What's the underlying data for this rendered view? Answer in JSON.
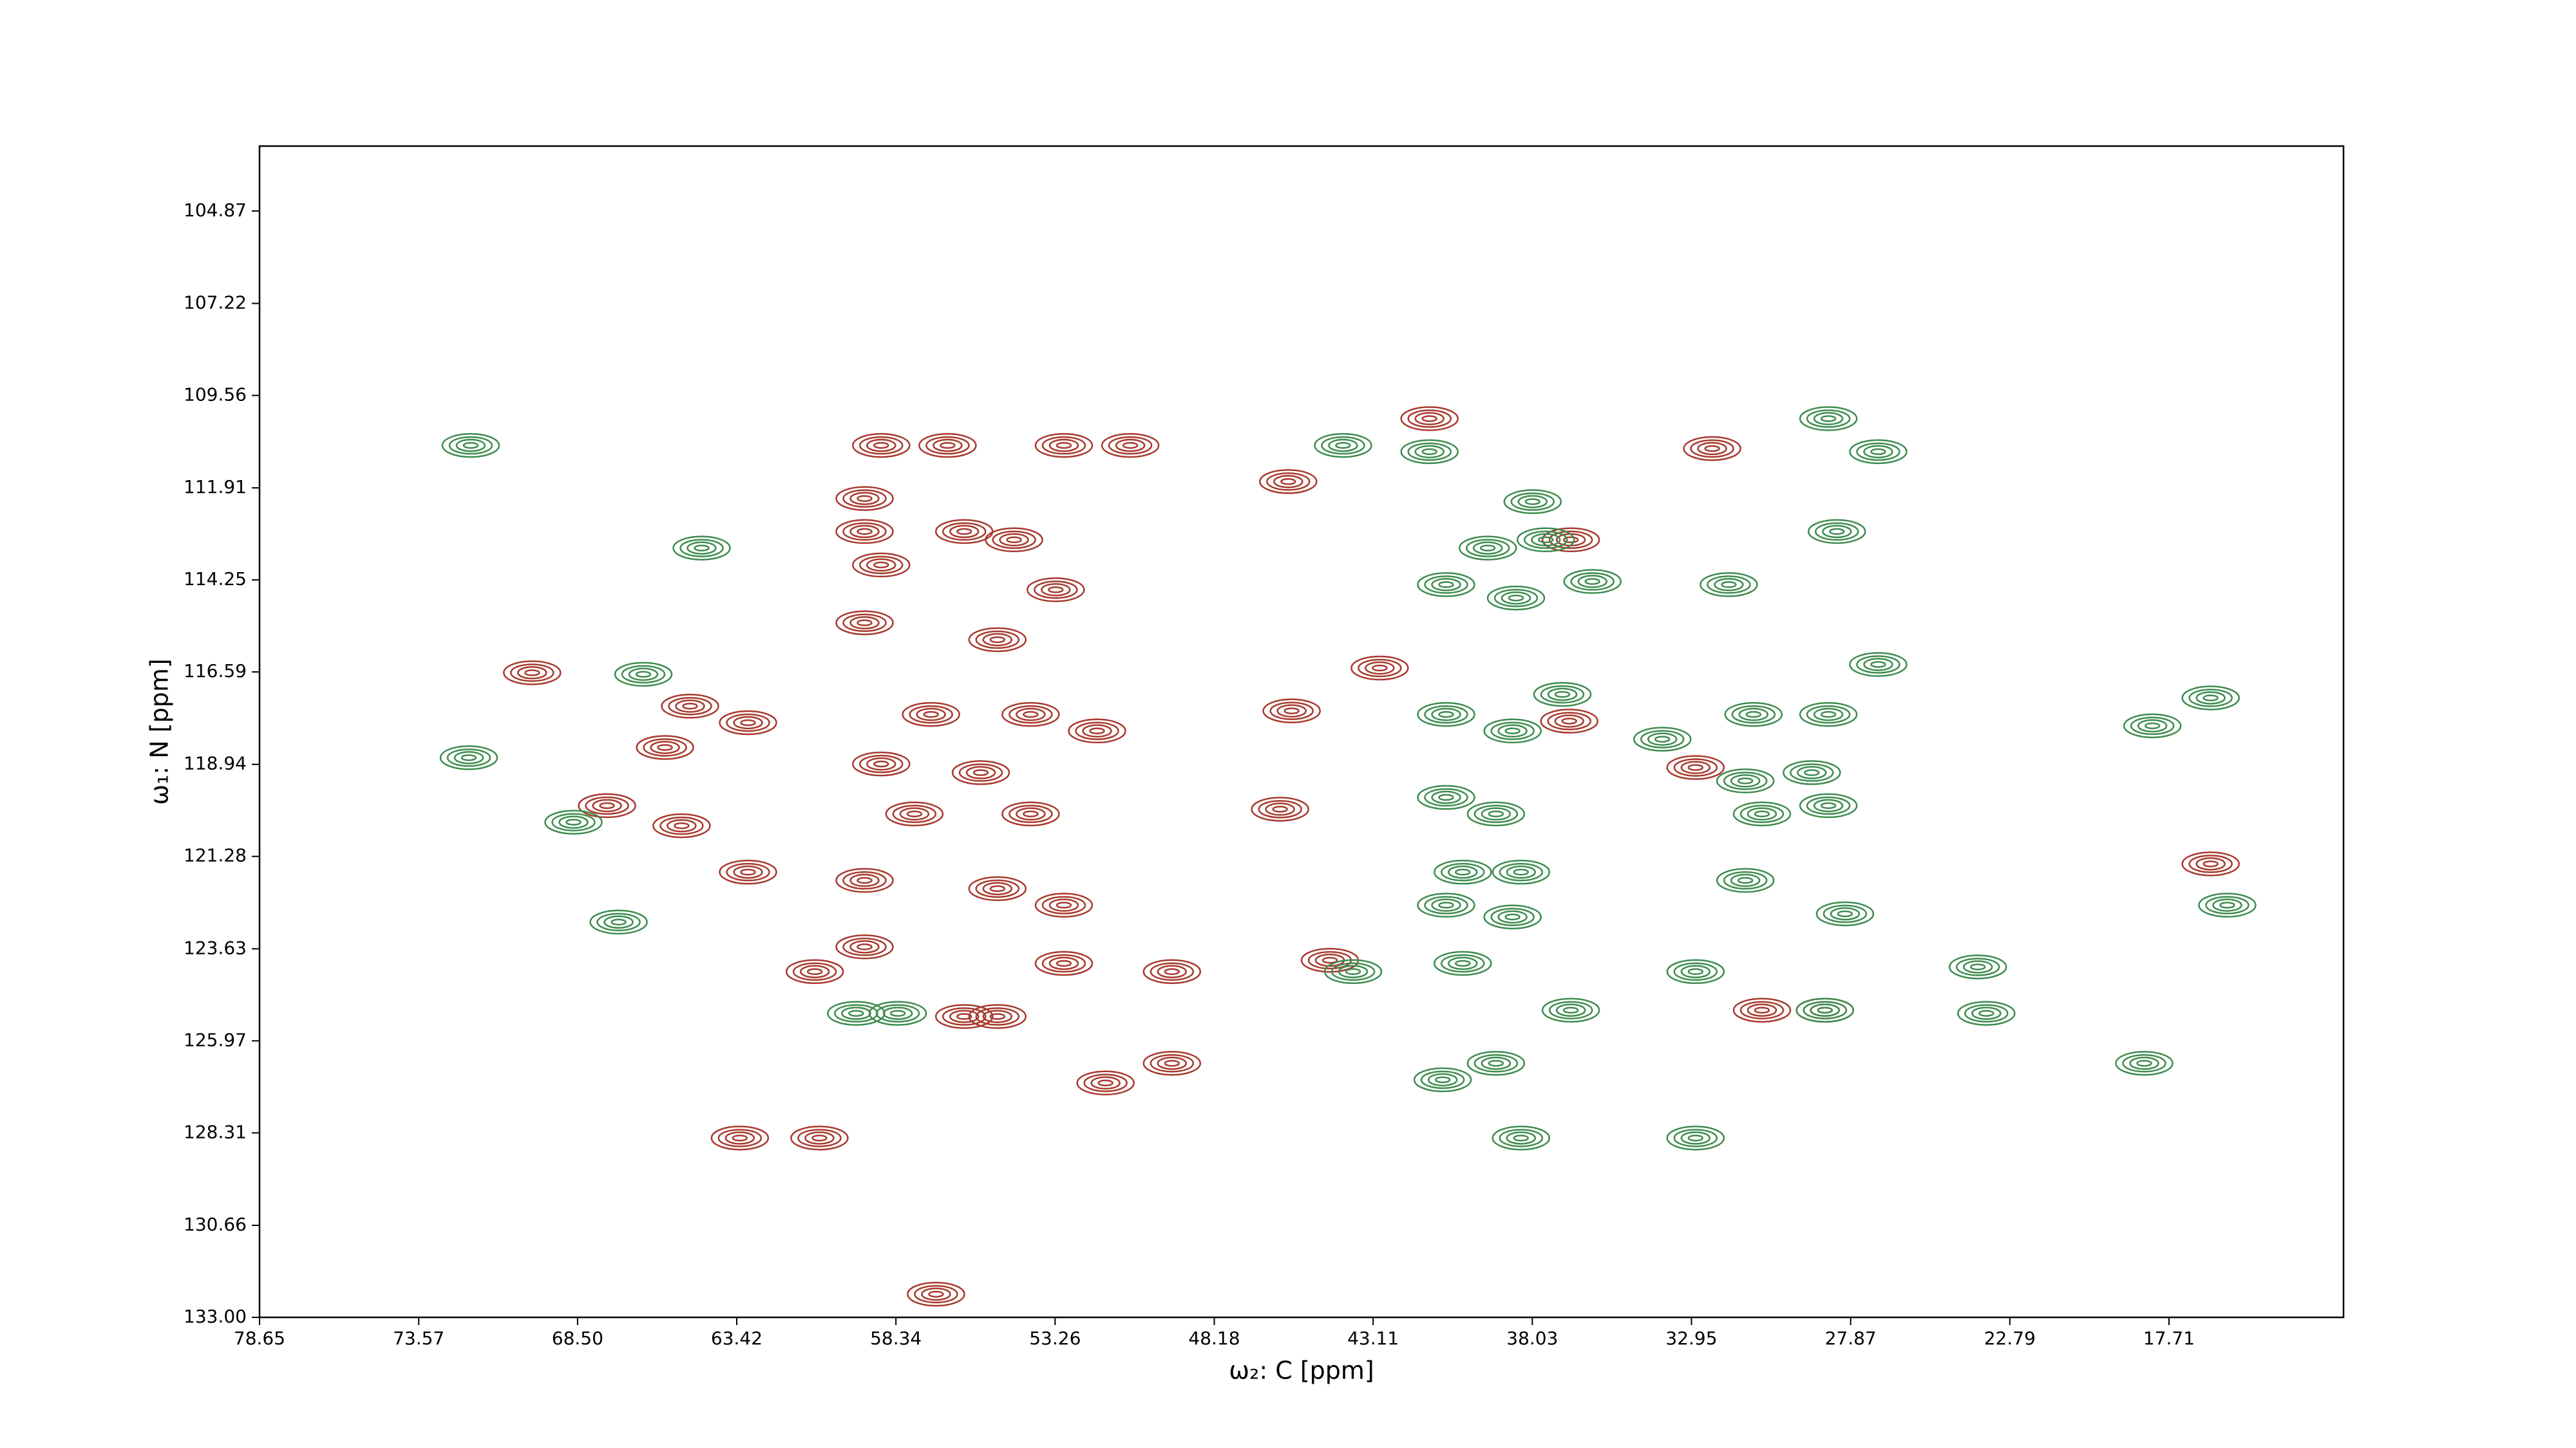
{
  "chart_data": {
    "type": "contour",
    "x_label": "ω₂: C [ppm]",
    "y_label": "ω₁: N [ppm]",
    "xlim": [
      78.65,
      12.14
    ],
    "ylim": [
      133.0,
      103.22
    ],
    "xticks": [
      78.65,
      73.57,
      {
        "value": 68.5,
        "label": "68.50"
      },
      63.42,
      58.34,
      53.26,
      48.18,
      43.11,
      38.03,
      32.95,
      27.87,
      22.79,
      17.71
    ],
    "yticks": [
      104.87,
      107.22,
      109.56,
      111.91,
      114.25,
      116.59,
      118.94,
      121.28,
      123.63,
      125.97,
      128.31,
      130.66,
      {
        "value": 133.0,
        "label": "133.00"
      }
    ],
    "series": [
      {
        "color": "#a8392d",
        "x": [
          58.81,
          56.69,
          52.98,
          50.86,
          45.82,
          41.31,
          59.34,
          59.34,
          56.16,
          54.57,
          59.34,
          53.24,
          55.1,
          63.06,
          65.71,
          64.91,
          57.22,
          54.04,
          51.92,
          58.81,
          55.63,
          67.56,
          65.18,
          63.06,
          59.34,
          55.1,
          52.98,
          57.75,
          54.04,
          59.34,
          52.98,
          60.93,
          56.16,
          55.1,
          49.53,
          49.53,
          51.65,
          63.32,
          60.78,
          57.06,
          44.49,
          46.08,
          45.71,
          42.9,
          36.85,
          32.29,
          32.82,
          28.69,
          30.7,
          69.95,
          16.38,
          36.8,
          58.81
        ],
        "values": [
          110.83,
          110.83,
          110.83,
          110.83,
          111.75,
          110.15,
          112.18,
          113.02,
          113.02,
          113.23,
          115.34,
          114.5,
          115.77,
          117.88,
          118.51,
          117.46,
          117.67,
          117.67,
          118.09,
          118.93,
          119.15,
          119.99,
          120.5,
          121.68,
          121.89,
          122.1,
          122.52,
          120.2,
          120.2,
          123.58,
          124.0,
          124.21,
          125.35,
          125.35,
          124.21,
          126.54,
          127.04,
          128.44,
          128.44,
          132.41,
          123.92,
          120.08,
          117.58,
          116.49,
          117.84,
          110.91,
          119.02,
          125.19,
          125.19,
          116.61,
          121.47,
          113.23,
          113.87
        ]
      },
      {
        "color": "#3d8c4e",
        "x": [
          71.91,
          64.54,
          66.4,
          71.97,
          68.63,
          67.19,
          44.07,
          41.31,
          38.02,
          37.6,
          39.45,
          40.78,
          38.55,
          36.11,
          31.76,
          28.58,
          26.99,
          28.31,
          26.99,
          28.58,
          30.97,
          33.88,
          29.11,
          31.23,
          28.58,
          30.7,
          37.07,
          40.78,
          38.66,
          40.78,
          39.19,
          40.25,
          38.39,
          40.78,
          38.66,
          40.25,
          32.82,
          28.69,
          31.23,
          28.05,
          23.81,
          23.54,
          18.5,
          16.38,
          18.24,
          15.85,
          38.39,
          32.82,
          40.89,
          39.19,
          36.8,
          43.75,
          59.61,
          58.28
        ],
        "values": [
          110.83,
          113.44,
          116.65,
          118.77,
          120.41,
          122.95,
          110.83,
          110.99,
          112.26,
          113.23,
          113.44,
          114.37,
          114.71,
          114.29,
          114.37,
          110.15,
          110.99,
          113.02,
          116.4,
          117.67,
          117.67,
          118.3,
          119.15,
          119.36,
          119.99,
          120.2,
          117.16,
          117.67,
          118.09,
          119.78,
          120.2,
          121.68,
          121.68,
          122.52,
          122.82,
          124.0,
          124.21,
          125.19,
          121.89,
          122.74,
          124.09,
          125.27,
          126.54,
          117.25,
          117.96,
          122.52,
          128.44,
          128.44,
          126.96,
          126.54,
          125.19,
          124.21,
          125.27,
          125.27
        ]
      }
    ]
  }
}
